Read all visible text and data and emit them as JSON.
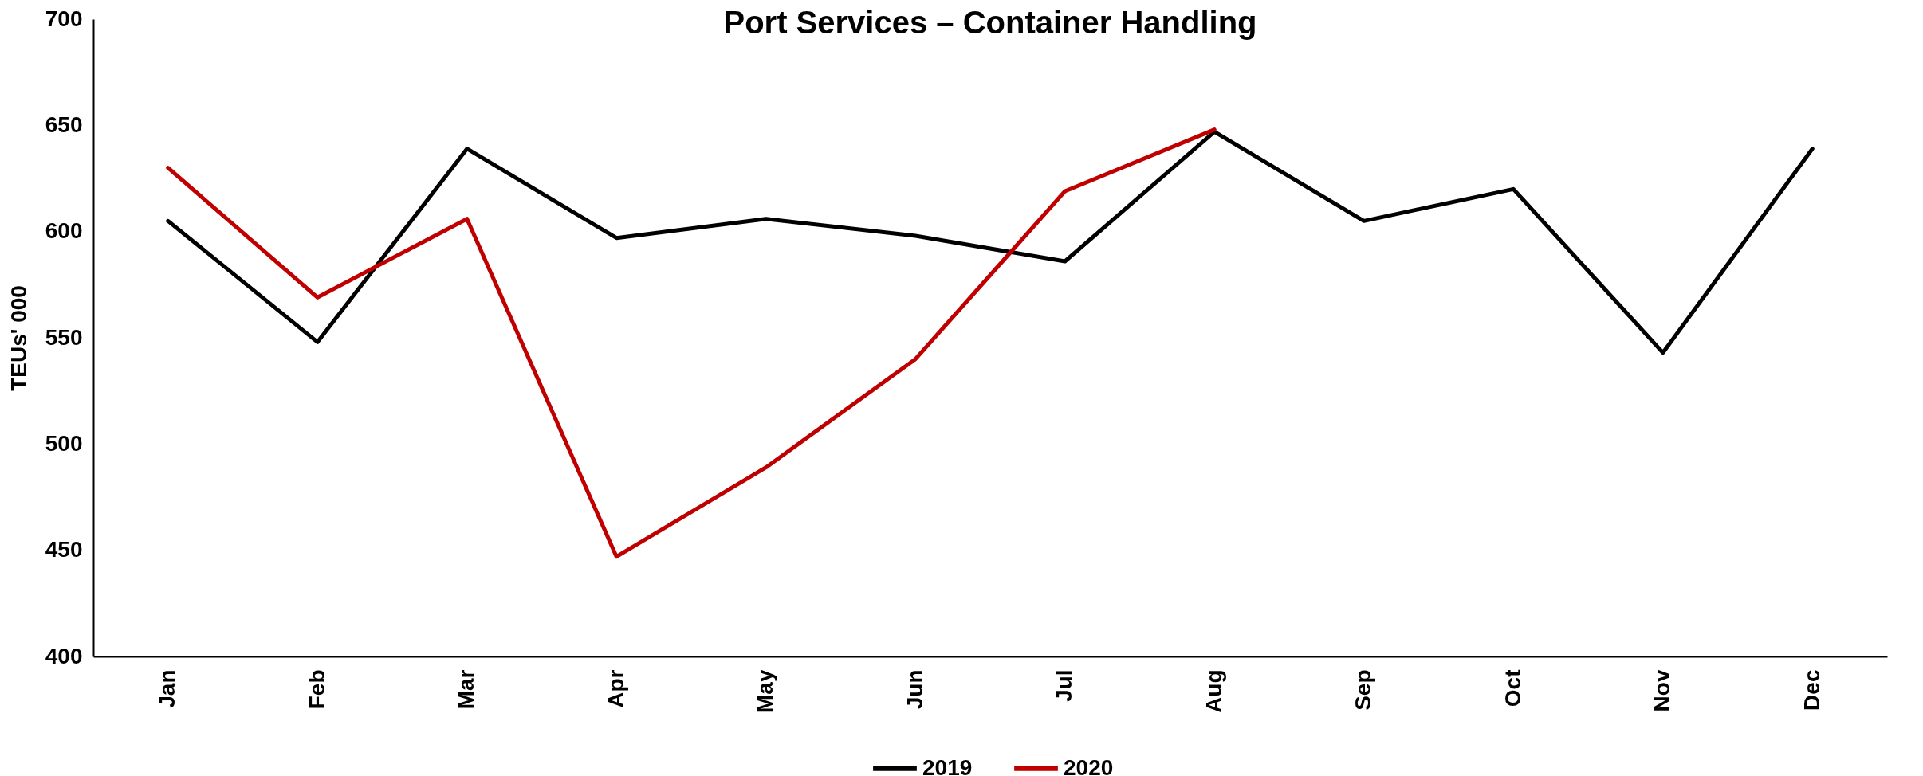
{
  "chart_data": {
    "type": "line",
    "title": "Port Services – Container Handling",
    "ylabel": "TEUs' 000",
    "categories": [
      "Jan",
      "Feb",
      "Mar",
      "Apr",
      "May",
      "Jun",
      "Jul",
      "Aug",
      "Sep",
      "Oct",
      "Nov",
      "Dec"
    ],
    "series": [
      {
        "name": "2019",
        "color": "#000000",
        "values": [
          605,
          548,
          639,
          597,
          606,
          598,
          586,
          647,
          605,
          620,
          543,
          639
        ]
      },
      {
        "name": "2020",
        "color": "#c00000",
        "values": [
          630,
          569,
          606,
          447,
          489,
          540,
          619,
          648,
          null,
          null,
          null,
          null
        ]
      }
    ],
    "ylim": [
      400,
      700
    ],
    "yticks": [
      400,
      450,
      500,
      550,
      600,
      650,
      700
    ],
    "grid": false,
    "legend": "bottom"
  }
}
